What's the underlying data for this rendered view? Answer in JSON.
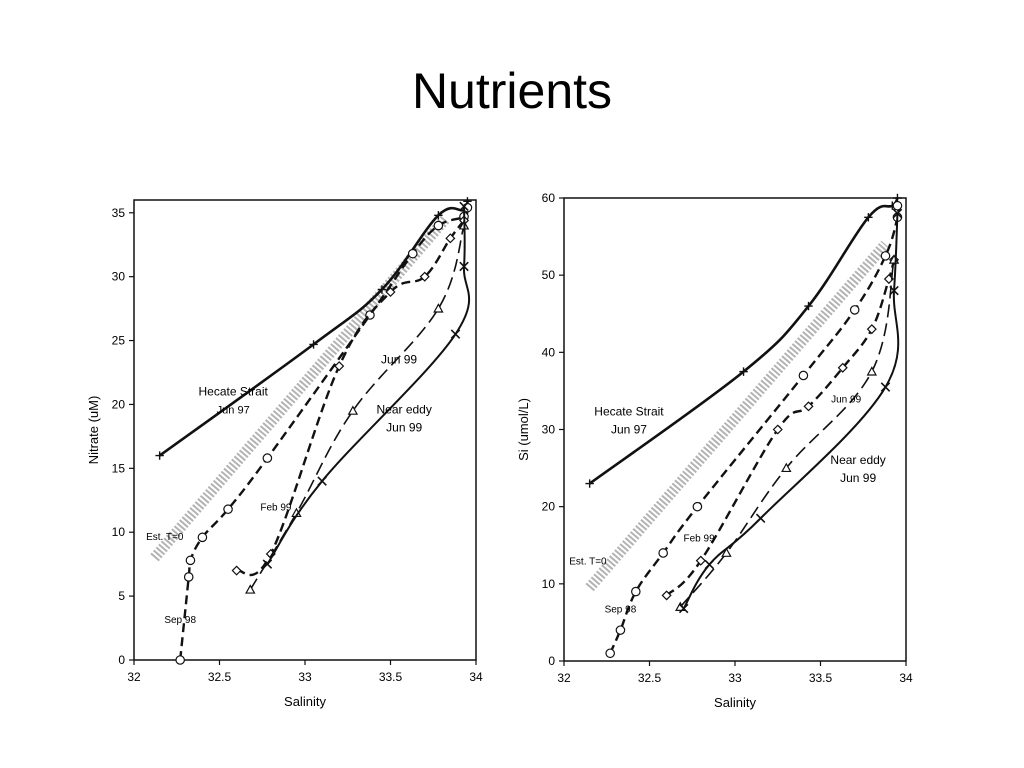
{
  "slide": {
    "title": "Nutrients"
  },
  "chart_data": [
    {
      "type": "line",
      "xlabel": "Salinity",
      "ylabel": "Nitrate  (uM)",
      "xlim": [
        32,
        34
      ],
      "ylim": [
        0,
        36
      ],
      "xticks": [
        32,
        32.5,
        33,
        33.5,
        34
      ],
      "xtick_labels": [
        "32",
        "32.5",
        "33",
        "33.5",
        "34"
      ],
      "yticks": [
        0,
        5,
        10,
        15,
        20,
        25,
        30,
        35
      ],
      "ytick_labels": [
        "0",
        "5",
        "10",
        "15",
        "20",
        "25",
        "30",
        "35"
      ],
      "grid": false,
      "series": [
        {
          "style": "solid-thick",
          "marker": "plus",
          "x": [
            32.15,
            33.05,
            33.45,
            33.78,
            33.93,
            33.95
          ],
          "y": [
            16,
            24.7,
            29,
            34.8,
            35.2,
            35.9
          ]
        },
        {
          "style": "dashed",
          "marker": "circle",
          "x": [
            32.27,
            32.32,
            32.33,
            32.4,
            32.55,
            32.78,
            33.38,
            33.63,
            33.78,
            33.93,
            33.95
          ],
          "y": [
            0,
            6.5,
            7.8,
            9.6,
            11.8,
            15.8,
            27,
            31.8,
            34,
            34.7,
            35.4
          ]
        },
        {
          "style": "dashed",
          "marker": "diamond",
          "x": [
            32.6,
            32.8,
            33.2,
            33.5,
            33.7,
            33.85,
            33.93
          ],
          "y": [
            7,
            8.3,
            23,
            28.8,
            30,
            33,
            34.4
          ]
        },
        {
          "style": "long-dashed",
          "marker": "triangle",
          "x": [
            32.68,
            32.95,
            33.28,
            33.78,
            33.93
          ],
          "y": [
            5.5,
            11.5,
            19.5,
            27.5,
            34
          ]
        },
        {
          "style": "solid",
          "marker": "x",
          "x": [
            32.78,
            33.1,
            33.88,
            33.93,
            33.93
          ],
          "y": [
            7.5,
            14,
            25.5,
            30.8,
            35.5
          ]
        },
        {
          "style": "dotted-band",
          "marker": "none",
          "x": [
            32.12,
            33.82
          ],
          "y": [
            8,
            34.5
          ]
        }
      ],
      "annotations": [
        {
          "text": "Hecate Strait",
          "x": 32.58,
          "y": 20.7
        },
        {
          "text": "Jun 97",
          "x": 32.58,
          "y": 19.3
        },
        {
          "text": "Jun 99",
          "x": 33.55,
          "y": 23.2
        },
        {
          "text": "Near eddy",
          "x": 33.58,
          "y": 19.3
        },
        {
          "text": "Jun 99",
          "x": 33.58,
          "y": 17.9
        },
        {
          "text": "Feb 99",
          "x": 32.83,
          "y": 11.7
        },
        {
          "text": "Est. T=0",
          "x": 32.18,
          "y": 9.4
        },
        {
          "text": "Sep 98",
          "x": 32.27,
          "y": 2.9
        }
      ]
    },
    {
      "type": "line",
      "xlabel": "Salinity",
      "ylabel": "Si  (umol/L)",
      "xlim": [
        32,
        34
      ],
      "ylim": [
        0,
        60
      ],
      "xticks": [
        32,
        32.5,
        33,
        33.5,
        34
      ],
      "xtick_labels": [
        "32",
        "32.5",
        "33",
        "33.5",
        "34"
      ],
      "yticks": [
        0,
        10,
        20,
        30,
        40,
        50,
        60
      ],
      "ytick_labels": [
        "0",
        "10",
        "20",
        "30",
        "40",
        "50",
        "60"
      ],
      "grid": false,
      "series": [
        {
          "style": "solid-thick",
          "marker": "plus",
          "x": [
            32.15,
            33.05,
            33.43,
            33.78,
            33.92,
            33.95
          ],
          "y": [
            23,
            37.5,
            46,
            57.5,
            59,
            60
          ]
        },
        {
          "style": "dashed",
          "marker": "circle",
          "x": [
            32.27,
            32.33,
            32.42,
            32.58,
            32.78,
            33.4,
            33.7,
            33.88,
            33.95,
            33.95
          ],
          "y": [
            1,
            4,
            9,
            14,
            20,
            37,
            45.5,
            52.5,
            57.5,
            59
          ]
        },
        {
          "style": "dashed",
          "marker": "diamond",
          "x": [
            32.6,
            32.8,
            33.25,
            33.43,
            33.63,
            33.8,
            33.9,
            33.93
          ],
          "y": [
            8.5,
            13,
            30,
            33,
            38,
            43,
            49.5,
            52
          ]
        },
        {
          "style": "long-dashed",
          "marker": "triangle",
          "x": [
            32.68,
            32.95,
            33.3,
            33.8,
            33.93
          ],
          "y": [
            7,
            14,
            25,
            37.5,
            52
          ]
        },
        {
          "style": "solid",
          "marker": "x",
          "x": [
            32.7,
            32.85,
            33.15,
            33.88,
            33.93,
            33.95
          ],
          "y": [
            6.8,
            12.5,
            18.5,
            35.5,
            48,
            58
          ]
        },
        {
          "style": "dotted-band",
          "marker": "none",
          "x": [
            32.15,
            33.88
          ],
          "y": [
            9.5,
            54
          ]
        }
      ],
      "annotations": [
        {
          "text": "Hecate Strait",
          "x": 32.38,
          "y": 31.8
        },
        {
          "text": "Jun 97",
          "x": 32.38,
          "y": 29.5
        },
        {
          "text": "Jun 99",
          "x": 33.65,
          "y": 33.5
        },
        {
          "text": "Near eddy",
          "x": 33.72,
          "y": 25.5
        },
        {
          "text": "Jun 99",
          "x": 33.72,
          "y": 23.2
        },
        {
          "text": "Feb 99",
          "x": 32.79,
          "y": 15.5
        },
        {
          "text": "Est. T=0",
          "x": 32.14,
          "y": 12.5
        },
        {
          "text": "Sep 98",
          "x": 32.33,
          "y": 6.3
        }
      ]
    }
  ]
}
